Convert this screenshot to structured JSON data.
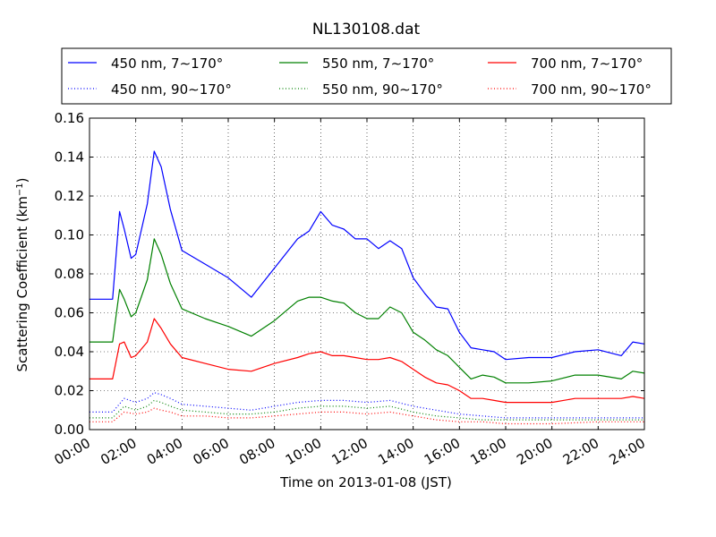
{
  "chart_data": {
    "type": "line",
    "title": "NL130108.dat",
    "xlabel": "Time on 2013-01-08 (JST)",
    "ylabel_main": "Scattering Coefficient (km",
    "ylabel_sup": "−1",
    "ylabel_close": ")",
    "xlim": [
      0,
      24
    ],
    "ylim": [
      0,
      0.16
    ],
    "grid": true,
    "legend_position": "top, above plot, 3 columns",
    "x_tick_values": [
      0,
      2,
      4,
      6,
      8,
      10,
      12,
      14,
      16,
      18,
      20,
      22,
      24
    ],
    "x_tick_labels": [
      "00:00",
      "02:00",
      "04:00",
      "06:00",
      "08:00",
      "10:00",
      "12:00",
      "14:00",
      "16:00",
      "18:00",
      "20:00",
      "22:00",
      "24:00"
    ],
    "y_tick_values": [
      0,
      0.02,
      0.04,
      0.06,
      0.08,
      0.1,
      0.12,
      0.14,
      0.16
    ],
    "y_tick_labels": [
      "0.00",
      "0.02",
      "0.04",
      "0.06",
      "0.08",
      "0.10",
      "0.12",
      "0.14",
      "0.16"
    ],
    "colors": {
      "blue": "#0000ff",
      "green": "#008000",
      "red": "#ff0000"
    },
    "series": [
      {
        "name": "450 nm, 7∼170°",
        "color": "#0000ff",
        "style": "solid",
        "x": [
          0,
          1,
          1.3,
          1.5,
          1.8,
          2.0,
          2.5,
          2.8,
          3.1,
          3.5,
          4.0,
          5.0,
          6.0,
          7.0,
          8.0,
          9.0,
          9.5,
          10.0,
          10.5,
          11.0,
          11.5,
          12.0,
          12.5,
          13.0,
          13.5,
          14.0,
          14.5,
          15.0,
          15.5,
          16.0,
          16.5,
          17.0,
          17.5,
          18.0,
          19.0,
          20.0,
          21.0,
          22.0,
          23.0,
          23.5,
          24.0
        ],
        "y": [
          0.067,
          0.067,
          0.112,
          0.103,
          0.088,
          0.09,
          0.116,
          0.143,
          0.135,
          0.113,
          0.092,
          0.085,
          0.078,
          0.068,
          0.083,
          0.098,
          0.102,
          0.112,
          0.105,
          0.103,
          0.098,
          0.098,
          0.093,
          0.097,
          0.093,
          0.078,
          0.07,
          0.063,
          0.062,
          0.05,
          0.042,
          0.041,
          0.04,
          0.036,
          0.037,
          0.037,
          0.04,
          0.041,
          0.038,
          0.045,
          0.044
        ]
      },
      {
        "name": "550 nm, 7∼170°",
        "color": "#008000",
        "style": "solid",
        "x": [
          0,
          1,
          1.3,
          1.5,
          1.8,
          2.0,
          2.5,
          2.8,
          3.1,
          3.5,
          4.0,
          5.0,
          6.0,
          7.0,
          8.0,
          9.0,
          9.5,
          10.0,
          10.5,
          11.0,
          11.5,
          12.0,
          12.5,
          13.0,
          13.5,
          14.0,
          14.5,
          15.0,
          15.5,
          16.0,
          16.5,
          17.0,
          17.5,
          18.0,
          19.0,
          20.0,
          21.0,
          22.0,
          23.0,
          23.5,
          24.0
        ],
        "y": [
          0.045,
          0.045,
          0.072,
          0.067,
          0.058,
          0.06,
          0.077,
          0.098,
          0.09,
          0.075,
          0.062,
          0.057,
          0.053,
          0.048,
          0.056,
          0.066,
          0.068,
          0.068,
          0.066,
          0.065,
          0.06,
          0.057,
          0.057,
          0.063,
          0.06,
          0.05,
          0.046,
          0.041,
          0.038,
          0.032,
          0.026,
          0.028,
          0.027,
          0.024,
          0.024,
          0.025,
          0.028,
          0.028,
          0.026,
          0.03,
          0.029
        ]
      },
      {
        "name": "700 nm, 7∼170°",
        "color": "#ff0000",
        "style": "solid",
        "x": [
          0,
          1,
          1.3,
          1.5,
          1.8,
          2.0,
          2.5,
          2.8,
          3.1,
          3.5,
          4.0,
          5.0,
          6.0,
          7.0,
          8.0,
          9.0,
          9.5,
          10.0,
          10.5,
          11.0,
          11.5,
          12.0,
          12.5,
          13.0,
          13.5,
          14.0,
          14.5,
          15.0,
          15.5,
          16.0,
          16.5,
          17.0,
          17.5,
          18.0,
          19.0,
          20.0,
          21.0,
          22.0,
          23.0,
          23.5,
          24.0
        ],
        "y": [
          0.026,
          0.026,
          0.044,
          0.045,
          0.037,
          0.038,
          0.045,
          0.057,
          0.052,
          0.044,
          0.037,
          0.034,
          0.031,
          0.03,
          0.034,
          0.037,
          0.039,
          0.04,
          0.038,
          0.038,
          0.037,
          0.036,
          0.036,
          0.037,
          0.035,
          0.031,
          0.027,
          0.024,
          0.023,
          0.02,
          0.016,
          0.016,
          0.015,
          0.014,
          0.014,
          0.014,
          0.016,
          0.016,
          0.016,
          0.017,
          0.016
        ]
      },
      {
        "name": "450 nm, 90∼170°",
        "color": "#0000ff",
        "style": "dotted",
        "x": [
          0,
          1,
          1.5,
          2.0,
          2.5,
          2.8,
          3.1,
          3.5,
          4.0,
          5.0,
          6.0,
          7.0,
          8.0,
          9.0,
          10.0,
          11.0,
          12.0,
          13.0,
          14.0,
          15.0,
          16.0,
          17.0,
          18.0,
          20.0,
          22.0,
          23.0,
          24.0
        ],
        "y": [
          0.009,
          0.009,
          0.016,
          0.014,
          0.016,
          0.019,
          0.018,
          0.016,
          0.013,
          0.012,
          0.011,
          0.01,
          0.012,
          0.014,
          0.015,
          0.015,
          0.014,
          0.015,
          0.012,
          0.01,
          0.008,
          0.007,
          0.006,
          0.006,
          0.006,
          0.006,
          0.006
        ]
      },
      {
        "name": "550 nm, 90∼170°",
        "color": "#008000",
        "style": "dotted",
        "x": [
          0,
          1,
          1.5,
          2.0,
          2.5,
          2.8,
          3.1,
          3.5,
          4.0,
          5.0,
          6.0,
          7.0,
          8.0,
          9.0,
          10.0,
          11.0,
          12.0,
          13.0,
          14.0,
          15.0,
          16.0,
          17.0,
          18.0,
          20.0,
          22.0,
          23.0,
          24.0
        ],
        "y": [
          0.006,
          0.006,
          0.012,
          0.01,
          0.012,
          0.015,
          0.014,
          0.012,
          0.01,
          0.009,
          0.008,
          0.008,
          0.009,
          0.011,
          0.012,
          0.012,
          0.011,
          0.012,
          0.009,
          0.007,
          0.006,
          0.005,
          0.005,
          0.005,
          0.005,
          0.005,
          0.005
        ]
      },
      {
        "name": "700 nm, 90∼170°",
        "color": "#ff0000",
        "style": "dotted",
        "x": [
          0,
          1,
          1.5,
          2.0,
          2.5,
          2.8,
          3.1,
          3.5,
          4.0,
          5.0,
          6.0,
          7.0,
          8.0,
          9.0,
          10.0,
          11.0,
          12.0,
          13.0,
          14.0,
          15.0,
          16.0,
          17.0,
          18.0,
          20.0,
          22.0,
          23.0,
          24.0
        ],
        "y": [
          0.004,
          0.004,
          0.009,
          0.008,
          0.009,
          0.011,
          0.01,
          0.009,
          0.007,
          0.007,
          0.006,
          0.006,
          0.007,
          0.008,
          0.009,
          0.009,
          0.008,
          0.009,
          0.007,
          0.005,
          0.004,
          0.004,
          0.003,
          0.003,
          0.004,
          0.004,
          0.004
        ]
      }
    ],
    "legend_order": [
      0,
      1,
      2,
      3,
      4,
      5
    ]
  }
}
